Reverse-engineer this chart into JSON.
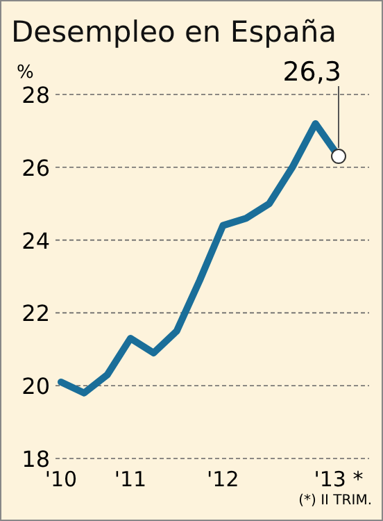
{
  "chart_data": {
    "type": "line",
    "title": "Desempleo en España",
    "ylabel": "%",
    "categories": [
      "'10",
      null,
      null,
      "'11",
      null,
      null,
      null,
      "'12",
      null,
      null,
      null,
      null,
      "'13 *"
    ],
    "series": [
      {
        "color": "#1a6e99",
        "values": [
          20.1,
          19.8,
          20.3,
          21.3,
          20.9,
          21.5,
          22.9,
          24.4,
          24.6,
          25.0,
          26.0,
          27.2,
          26.3
        ],
        "value_labels": [
          null,
          null,
          null,
          null,
          null,
          null,
          null,
          null,
          null,
          null,
          null,
          null,
          "26,3"
        ]
      }
    ],
    "ylim": [
      18,
      28
    ],
    "yticks": [
      18,
      20,
      22,
      24,
      26,
      28
    ],
    "grid": "y",
    "annotations": [
      "(*) II TRIM."
    ]
  }
}
